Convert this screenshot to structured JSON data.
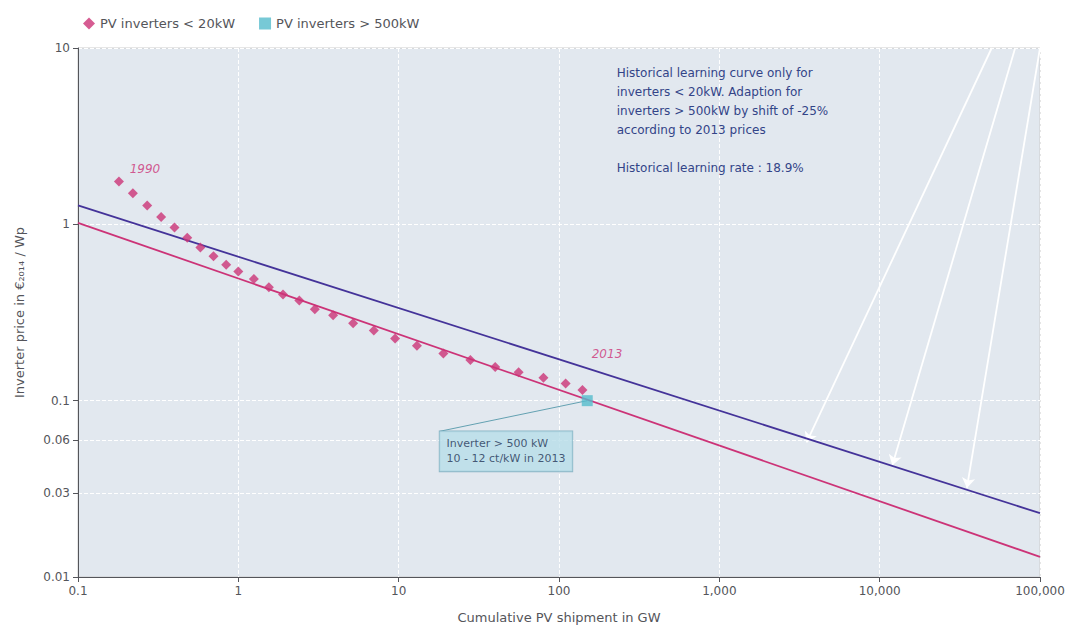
{
  "chart_data": {
    "type": "scatter",
    "xlabel": "Cumulative PV shipment in GW",
    "ylabel": "Inverter price in €₂₀₁₄ / Wp",
    "log": true,
    "xlim": [
      0.1,
      100000
    ],
    "ylim": [
      0.01,
      10
    ],
    "xticks": [
      0.1,
      1,
      10,
      100,
      {
        "value": 1000,
        "label": "1,000"
      },
      {
        "value": 10000,
        "label": "10,000"
      },
      {
        "value": 100000,
        "label": "100,000"
      }
    ],
    "yticks": [
      0.01,
      0.03,
      0.06,
      0.1,
      1,
      10
    ],
    "grid": true,
    "legend": "upper left",
    "background": "#e2e8ef",
    "series": [
      {
        "name": "PV inverters < 20kW",
        "type": "scatter",
        "marker": "diamond",
        "color": "#cc3377",
        "x": [
          0.18,
          0.22,
          0.27,
          0.33,
          0.4,
          0.48,
          0.58,
          0.7,
          0.84,
          1.0,
          1.25,
          1.55,
          1.9,
          2.4,
          3.0,
          3.9,
          5.2,
          7.0,
          9.5,
          13,
          19,
          28,
          40,
          56,
          80,
          110,
          140
        ],
        "values": [
          1.75,
          1.5,
          1.28,
          1.1,
          0.96,
          0.84,
          0.74,
          0.66,
          0.59,
          0.54,
          0.49,
          0.44,
          0.4,
          0.37,
          0.33,
          0.305,
          0.275,
          0.25,
          0.225,
          0.205,
          0.185,
          0.17,
          0.155,
          0.145,
          0.135,
          0.125,
          0.115
        ]
      },
      {
        "name": "PV inverters > 500kW",
        "type": "scatter",
        "marker": "square",
        "color": "#55bbcc",
        "x": [
          150
        ],
        "values": [
          0.1
        ]
      },
      {
        "type": "line",
        "line_style": "solid",
        "color": "#cc3377",
        "x": [
          0.1,
          100000
        ],
        "values": [
          1.02,
          0.013
        ]
      },
      {
        "type": "line",
        "line_style": "solid",
        "color": "#443399",
        "x": [
          0.1,
          100000
        ],
        "values": [
          1.28,
          0.023
        ]
      }
    ],
    "arrows": {
      "color": "white",
      "x_from": [
        50000,
        70000,
        100000
      ],
      "y_from": [
        10,
        10,
        10
      ],
      "x_to": [
        3500,
        12000,
        35000
      ],
      "y_to": [
        0.058,
        0.043,
        0.032
      ]
    },
    "annotations": [
      {
        "text": "1990",
        "x": 0.21,
        "y": 2.05,
        "color": "#cc3377"
      },
      {
        "text": "2013",
        "x": 160,
        "y": 0.185,
        "color": "#cc3377"
      },
      {
        "text": "Inverter > 500 kW\n10 - 12 ct/kW in 2013",
        "x": 18,
        "y": 0.067,
        "point_x": 150,
        "point_y": 0.1,
        "color": "#223355",
        "background": "#b8dde8",
        "border_color": "#77aabb",
        "arrow_color": "#5599aa"
      }
    ],
    "note": {
      "text": "Historical learning curve only for\ninverters < 20kW. Adaption for\ninverters > 500kW by shift of -25%\naccording to 2013 prices\n\nHistorical learning rate : 18.9%",
      "color": "#334488"
    }
  }
}
